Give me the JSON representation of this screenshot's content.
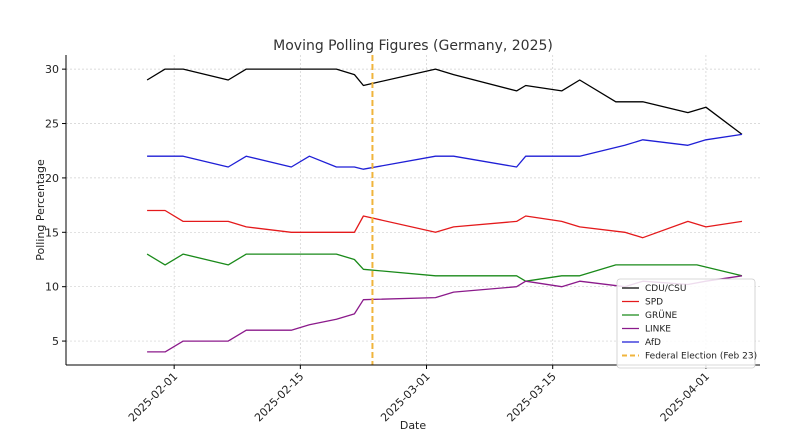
{
  "chart_data": {
    "type": "line",
    "title": "Moving Polling Figures (Germany, 2025)",
    "xlabel": "Date",
    "ylabel": "Polling Percentage",
    "x_range": [
      "2025-01-20",
      "2025-04-07"
    ],
    "ylim": [
      2.8,
      31.3
    ],
    "grid": true,
    "legend_position": "bottom-right",
    "x_ticks": [
      "2025-02-01",
      "2025-02-15",
      "2025-03-01",
      "2025-03-15",
      "2025-04-01"
    ],
    "y_ticks": [
      5,
      10,
      15,
      20,
      25,
      30
    ],
    "series": [
      {
        "name": "CDU/CSU",
        "color": "#000000",
        "points": [
          [
            "2025-01-29",
            29
          ],
          [
            "2025-01-31",
            30
          ],
          [
            "2025-02-02",
            30
          ],
          [
            "2025-02-07",
            29
          ],
          [
            "2025-02-09",
            30
          ],
          [
            "2025-02-19",
            30
          ],
          [
            "2025-02-21",
            29.5
          ],
          [
            "2025-02-22",
            28.5
          ],
          [
            "2025-03-02",
            30
          ],
          [
            "2025-03-04",
            29.5
          ],
          [
            "2025-03-11",
            28
          ],
          [
            "2025-03-12",
            28.5
          ],
          [
            "2025-03-16",
            28
          ],
          [
            "2025-03-18",
            29
          ],
          [
            "2025-03-22",
            27
          ],
          [
            "2025-03-25",
            27
          ],
          [
            "2025-03-30",
            26
          ],
          [
            "2025-04-01",
            26.5
          ],
          [
            "2025-04-05",
            24
          ]
        ]
      },
      {
        "name": "SPD",
        "color": "#e41a1c",
        "points": [
          [
            "2025-01-29",
            17
          ],
          [
            "2025-01-31",
            17
          ],
          [
            "2025-02-02",
            16
          ],
          [
            "2025-02-07",
            16
          ],
          [
            "2025-02-09",
            15.5
          ],
          [
            "2025-02-14",
            15
          ],
          [
            "2025-02-21",
            15
          ],
          [
            "2025-02-22",
            16.5
          ],
          [
            "2025-03-02",
            15
          ],
          [
            "2025-03-04",
            15.5
          ],
          [
            "2025-03-11",
            16
          ],
          [
            "2025-03-12",
            16.5
          ],
          [
            "2025-03-16",
            16
          ],
          [
            "2025-03-18",
            15.5
          ],
          [
            "2025-03-23",
            15
          ],
          [
            "2025-03-25",
            14.5
          ],
          [
            "2025-03-30",
            16
          ],
          [
            "2025-04-01",
            15.5
          ],
          [
            "2025-04-05",
            16
          ]
        ]
      },
      {
        "name": "GRÜNE",
        "color": "#1a8a1a",
        "points": [
          [
            "2025-01-29",
            13
          ],
          [
            "2025-01-31",
            12
          ],
          [
            "2025-02-02",
            13
          ],
          [
            "2025-02-07",
            12
          ],
          [
            "2025-02-09",
            13
          ],
          [
            "2025-02-19",
            13
          ],
          [
            "2025-02-21",
            12.5
          ],
          [
            "2025-02-22",
            11.6
          ],
          [
            "2025-03-02",
            11
          ],
          [
            "2025-03-11",
            11
          ],
          [
            "2025-03-12",
            10.5
          ],
          [
            "2025-03-16",
            11
          ],
          [
            "2025-03-18",
            11
          ],
          [
            "2025-03-22",
            12
          ],
          [
            "2025-03-31",
            12
          ],
          [
            "2025-04-05",
            11
          ]
        ]
      },
      {
        "name": "LINKE",
        "color": "#8b1a8b",
        "points": [
          [
            "2025-01-29",
            4
          ],
          [
            "2025-01-31",
            4
          ],
          [
            "2025-02-02",
            5
          ],
          [
            "2025-02-07",
            5
          ],
          [
            "2025-02-09",
            6
          ],
          [
            "2025-02-14",
            6
          ],
          [
            "2025-02-16",
            6.5
          ],
          [
            "2025-02-19",
            7
          ],
          [
            "2025-02-21",
            7.5
          ],
          [
            "2025-02-22",
            8.8
          ],
          [
            "2025-03-02",
            9
          ],
          [
            "2025-03-04",
            9.5
          ],
          [
            "2025-03-11",
            10
          ],
          [
            "2025-03-12",
            10.5
          ],
          [
            "2025-03-16",
            10
          ],
          [
            "2025-03-18",
            10.5
          ],
          [
            "2025-03-23",
            10
          ],
          [
            "2025-03-25",
            10.5
          ],
          [
            "2025-03-30",
            10.2
          ],
          [
            "2025-04-01",
            10.5
          ],
          [
            "2025-04-05",
            11
          ]
        ]
      },
      {
        "name": "AfD",
        "color": "#1f1fd6",
        "points": [
          [
            "2025-01-29",
            22
          ],
          [
            "2025-02-02",
            22
          ],
          [
            "2025-02-07",
            21
          ],
          [
            "2025-02-09",
            22
          ],
          [
            "2025-02-14",
            21
          ],
          [
            "2025-02-16",
            22
          ],
          [
            "2025-02-19",
            21
          ],
          [
            "2025-02-21",
            21
          ],
          [
            "2025-02-22",
            20.8
          ],
          [
            "2025-03-02",
            22
          ],
          [
            "2025-03-04",
            22
          ],
          [
            "2025-03-11",
            21
          ],
          [
            "2025-03-12",
            22
          ],
          [
            "2025-03-18",
            22
          ],
          [
            "2025-03-23",
            23
          ],
          [
            "2025-03-25",
            23.5
          ],
          [
            "2025-03-30",
            23
          ],
          [
            "2025-04-01",
            23.5
          ],
          [
            "2025-04-05",
            24
          ]
        ]
      }
    ],
    "annotations": [
      {
        "type": "vertical-line",
        "name": "Federal Election (Feb 23)",
        "x": "2025-02-23",
        "color": "#f0b43c",
        "style": "dashed"
      }
    ]
  }
}
